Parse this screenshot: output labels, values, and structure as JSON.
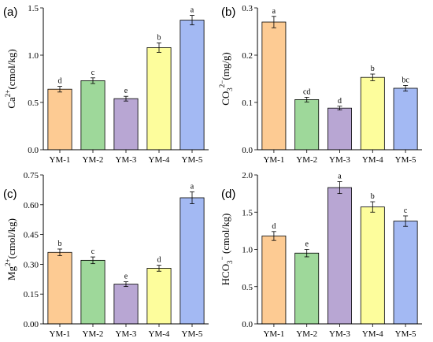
{
  "colors": [
    "#FDCB93",
    "#9ED89A",
    "#B8A6D3",
    "#FDFD9C",
    "#A3B9F3"
  ],
  "categories": [
    "YM-1",
    "YM-2",
    "YM-3",
    "YM-4",
    "YM-5"
  ],
  "chart_data": [
    {
      "type": "bar",
      "panel": "(a)",
      "ylabel": {
        "base": "Ca",
        "sup": "2+",
        "tail": "(cmol/kg)"
      },
      "ylim": [
        0,
        1.5
      ],
      "yticks": [
        0.0,
        0.5,
        1.0,
        1.5
      ],
      "tick_decimals": 1,
      "categories": [
        "YM-1",
        "YM-2",
        "YM-3",
        "YM-4",
        "YM-5"
      ],
      "values": [
        0.64,
        0.73,
        0.54,
        1.08,
        1.37
      ],
      "errors": [
        0.03,
        0.03,
        0.025,
        0.05,
        0.05
      ],
      "letters": [
        "d",
        "c",
        "e",
        "b",
        "a"
      ]
    },
    {
      "type": "bar",
      "panel": "(b)",
      "ylabel": {
        "base": "CO",
        "sub": "3",
        "sup": "2−",
        "tail": "(mg/g)"
      },
      "ylim": [
        0,
        0.3
      ],
      "yticks": [
        0.0,
        0.1,
        0.2,
        0.3
      ],
      "tick_decimals": 1,
      "categories": [
        "YM-1",
        "YM-2",
        "YM-3",
        "YM-4",
        "YM-5"
      ],
      "values": [
        0.27,
        0.106,
        0.088,
        0.153,
        0.13
      ],
      "errors": [
        0.012,
        0.005,
        0.004,
        0.007,
        0.006
      ],
      "letters": [
        "a",
        "cd",
        "d",
        "b",
        "bc"
      ]
    },
    {
      "type": "bar",
      "panel": "(c)",
      "ylabel": {
        "base": "Mg",
        "sup": "2+",
        "tail": "(cmol/kg)"
      },
      "ylim": [
        0,
        0.75
      ],
      "yticks": [
        0.0,
        0.15,
        0.3,
        0.45,
        0.6,
        0.75
      ],
      "tick_decimals": 2,
      "categories": [
        "YM-1",
        "YM-2",
        "YM-3",
        "YM-4",
        "YM-5"
      ],
      "values": [
        0.36,
        0.32,
        0.2,
        0.28,
        0.635
      ],
      "errors": [
        0.017,
        0.017,
        0.012,
        0.015,
        0.03
      ],
      "letters": [
        "b",
        "c",
        "e",
        "d",
        "a"
      ]
    },
    {
      "type": "bar",
      "panel": "(d)",
      "ylabel": {
        "base": "HCO",
        "sub": "3",
        "sup": "−",
        "tail": " (cmol/kg)"
      },
      "ylim": [
        0,
        2.0
      ],
      "yticks": [
        0.0,
        0.5,
        1.0,
        1.5,
        2.0
      ],
      "tick_decimals": 1,
      "categories": [
        "YM-1",
        "YM-2",
        "YM-3",
        "YM-4",
        "YM-5"
      ],
      "values": [
        1.18,
        0.95,
        1.83,
        1.57,
        1.38
      ],
      "errors": [
        0.06,
        0.05,
        0.08,
        0.07,
        0.07
      ],
      "letters": [
        "d",
        "e",
        "a",
        "b",
        "c"
      ]
    }
  ]
}
